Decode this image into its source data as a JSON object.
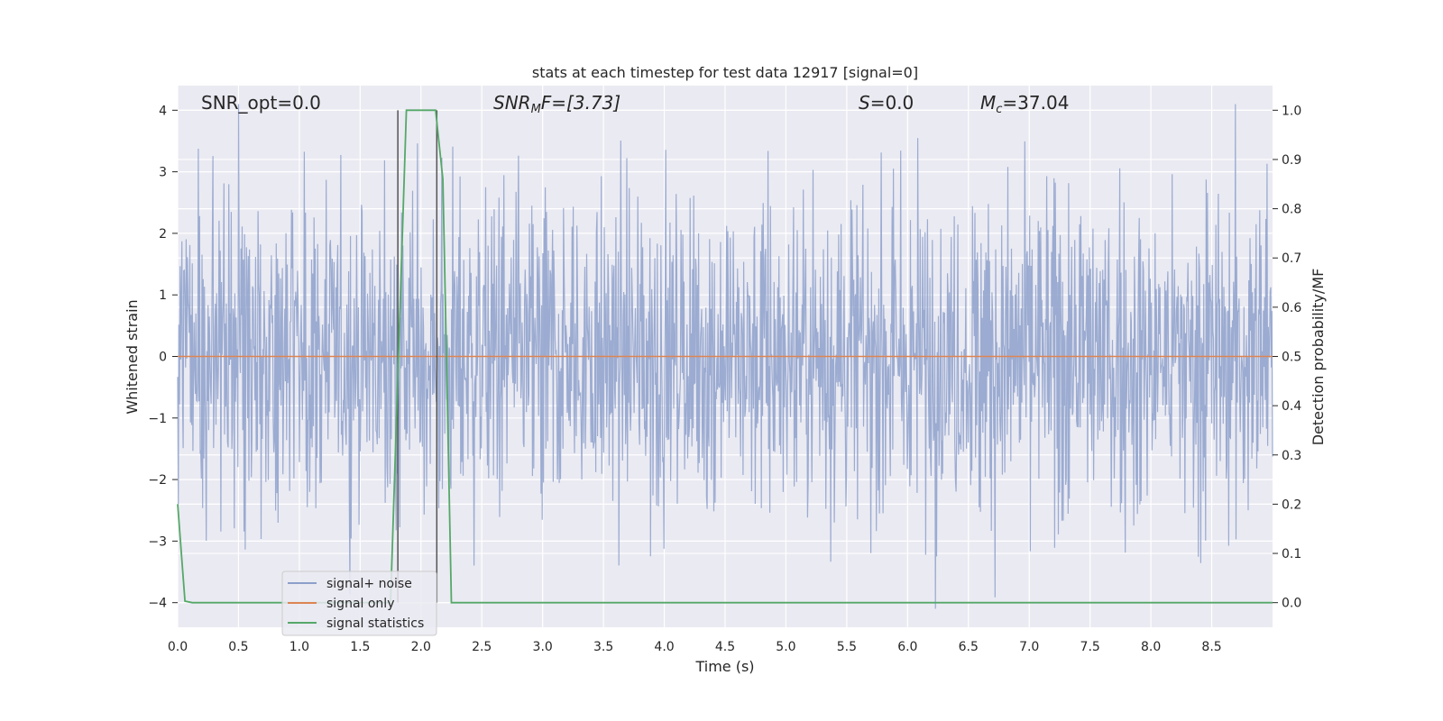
{
  "chart_data": {
    "type": "line",
    "title": "stats at each timestep for test data 12917 [signal=0]",
    "xlabel": "Time (s)",
    "ylabel": "Whitened strain",
    "y2label": "Detection probability/MF",
    "xlim": [
      0.0,
      9.0
    ],
    "ylim": [
      -4.4,
      4.4
    ],
    "y2lim": [
      -0.05,
      1.05
    ],
    "xticks": [
      "0.0",
      "0.5",
      "1.0",
      "1.5",
      "2.0",
      "2.5",
      "3.0",
      "3.5",
      "4.0",
      "4.5",
      "5.0",
      "5.5",
      "6.0",
      "6.5",
      "7.0",
      "7.5",
      "8.0",
      "8.5"
    ],
    "yticks": [
      "4",
      "3",
      "2",
      "1",
      "0",
      "−1",
      "−2",
      "−3",
      "−4"
    ],
    "y2ticks": [
      "1.0",
      "0.9",
      "0.8",
      "0.7",
      "0.6",
      "0.5",
      "0.4",
      "0.3",
      "0.2",
      "0.1",
      "0.0"
    ],
    "grid": true,
    "legend_position": "lower-left",
    "annotations": {
      "snr_opt": "SNR_opt=0.0",
      "snr_mf_base": "SNR",
      "snr_mf_sub": "M",
      "snr_mf_rest": "F=[3.73]",
      "s_base": "S",
      "s_rest": "=0.0",
      "mc_base": "M",
      "mc_sub": "c",
      "mc_rest": "=37.04"
    },
    "series": [
      {
        "name": "signal+ noise",
        "color": "#8da0cb",
        "kind": "noise",
        "approx_stats": {
          "n_points": 1800,
          "typical_amplitude": 1.6,
          "max_abs": 4.1
        }
      },
      {
        "name": "signal only",
        "color": "#dd8452",
        "x": [
          0.0,
          9.0
        ],
        "y": [
          0.0,
          0.0
        ]
      },
      {
        "name": "signal statistics",
        "color": "#55a868",
        "axis": "right",
        "x": [
          0.0,
          0.06,
          0.12,
          1.75,
          1.88,
          2.12,
          2.18,
          2.25,
          9.0
        ],
        "y": [
          0.2,
          0.003,
          0.0,
          0.0,
          1.0,
          1.0,
          0.86,
          0.0,
          0.0
        ]
      }
    ],
    "vertical_markers": {
      "color": "#555555",
      "x": [
        1.81,
        2.13
      ],
      "y_range": [
        -4.0,
        4.0
      ]
    }
  }
}
